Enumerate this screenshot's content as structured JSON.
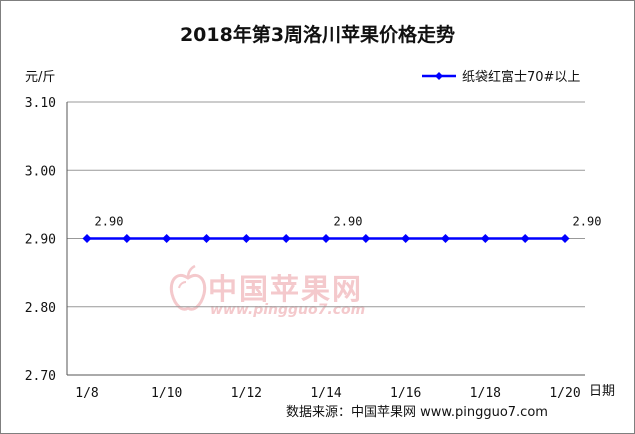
{
  "chart_data": {
    "type": "line",
    "title": "2018年第3周洛川苹果价格走势",
    "ylabel": "元/斤",
    "xlabel": "日期",
    "ylim": [
      2.7,
      3.1
    ],
    "yticks": [
      "3.10",
      "3.00",
      "2.90",
      "2.80",
      "2.70"
    ],
    "xtick_labels": [
      "1/8",
      "1/10",
      "1/12",
      "1/14",
      "1/16",
      "1/18",
      "1/20"
    ],
    "series": [
      {
        "name": "纸袋红富士70#以上",
        "color": "#0000ff",
        "values": [
          2.9,
          2.9,
          2.9,
          2.9,
          2.9,
          2.9,
          2.9,
          2.9,
          2.9,
          2.9,
          2.9,
          2.9,
          2.9
        ]
      }
    ],
    "data_labels": [
      {
        "index": 0,
        "text": "2.90"
      },
      {
        "index": 6,
        "text": "2.90"
      },
      {
        "index": 12,
        "text": "2.90"
      }
    ],
    "grid": "horizontal"
  },
  "source": "数据来源：中国苹果网 www.pingguo7.com",
  "watermark": {
    "name": "中国苹果网",
    "url": "www.pingguo7.com"
  }
}
